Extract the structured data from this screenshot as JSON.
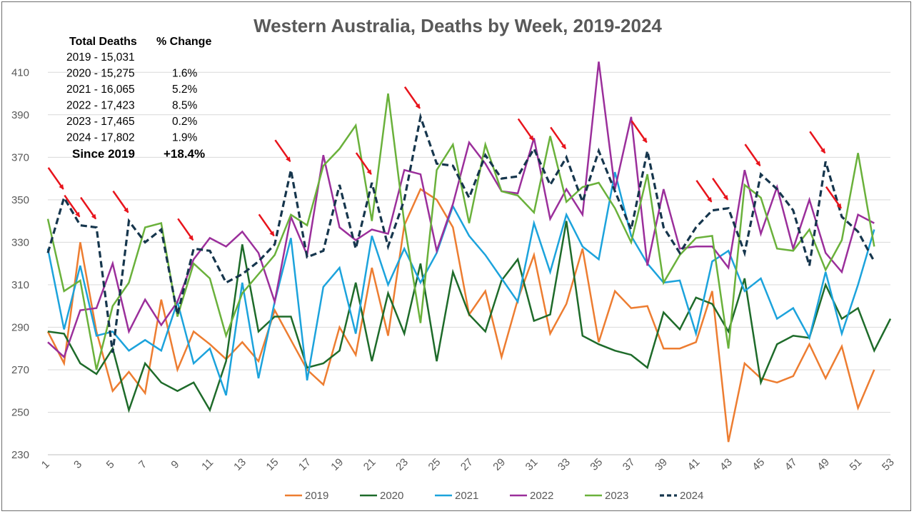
{
  "chart_data": {
    "type": "line",
    "title": "Western Australia, Deaths by Week, 2019-2024",
    "xlabel": "",
    "ylabel": "",
    "xlim": [
      1,
      53
    ],
    "ylim": [
      230,
      420
    ],
    "y_ticks": [
      230,
      250,
      270,
      290,
      310,
      330,
      350,
      370,
      390,
      410
    ],
    "x_ticks": [
      1,
      3,
      5,
      7,
      9,
      11,
      13,
      15,
      17,
      19,
      21,
      23,
      25,
      27,
      29,
      31,
      33,
      35,
      37,
      39,
      41,
      43,
      45,
      47,
      49,
      51,
      53
    ],
    "grid": "horizontal",
    "legend_position": "bottom",
    "series": [
      {
        "name": "2019",
        "color": "#ed7d31",
        "dash": false,
        "values": [
          288,
          273,
          330,
          288,
          260,
          269,
          259,
          303,
          270,
          288,
          282,
          275,
          283,
          274,
          298,
          284,
          270,
          263,
          290,
          277,
          318,
          286,
          338,
          355,
          350,
          337,
          296,
          307,
          276,
          303,
          324,
          287,
          301,
          327,
          283,
          307,
          299,
          300,
          280,
          280,
          283,
          307,
          236,
          273,
          266,
          264,
          267,
          282,
          266,
          281,
          252,
          270
        ]
      },
      {
        "name": "2020",
        "color": "#1e6b2a",
        "dash": false,
        "values": [
          288,
          287,
          273,
          268,
          280,
          251,
          273,
          264,
          260,
          264,
          251,
          274,
          329,
          288,
          295,
          295,
          271,
          273,
          279,
          311,
          274,
          306,
          287,
          320,
          274,
          316,
          296,
          288,
          312,
          322,
          293,
          296,
          340,
          286,
          282,
          279,
          277,
          271,
          297,
          289,
          304,
          301,
          288,
          313,
          264,
          282,
          286,
          285,
          310,
          294,
          299,
          279,
          294
        ]
      },
      {
        "name": "2021",
        "color": "#1ca3dc",
        "dash": false,
        "values": [
          327,
          289,
          319,
          286,
          288,
          279,
          284,
          279,
          302,
          273,
          280,
          258,
          311,
          266,
          302,
          332,
          265,
          309,
          318,
          287,
          333,
          310,
          327,
          311,
          325,
          347,
          333,
          324,
          313,
          302,
          339,
          316,
          343,
          328,
          322,
          363,
          333,
          320,
          311,
          312,
          287,
          321,
          326,
          307,
          313,
          294,
          299,
          285,
          316,
          287,
          310,
          336
        ]
      },
      {
        "name": "2022",
        "color": "#9b2f9b",
        "dash": false,
        "values": [
          283,
          276,
          298,
          299,
          320,
          288,
          303,
          291,
          302,
          322,
          332,
          328,
          335,
          325,
          302,
          342,
          324,
          371,
          337,
          331,
          336,
          334,
          364,
          362,
          326,
          348,
          377,
          367,
          354,
          353,
          379,
          341,
          355,
          343,
          415,
          355,
          389,
          319,
          355,
          327,
          328,
          328,
          318,
          364,
          334,
          356,
          327,
          350,
          325,
          316,
          343,
          339
        ]
      },
      {
        "name": "2023",
        "color": "#6ab13b",
        "dash": false,
        "values": [
          341,
          307,
          312,
          270,
          300,
          311,
          337,
          339,
          295,
          320,
          313,
          286,
          306,
          315,
          324,
          343,
          338,
          366,
          374,
          385,
          340,
          400,
          339,
          292,
          364,
          376,
          339,
          376,
          354,
          352,
          344,
          380,
          349,
          356,
          358,
          346,
          330,
          362,
          311,
          324,
          332,
          333,
          280,
          357,
          351,
          327,
          326,
          336,
          317,
          331,
          372,
          328
        ]
      },
      {
        "name": "2024",
        "color": "#16364d",
        "dash": true,
        "values": [
          325,
          351,
          338,
          337,
          278,
          340,
          330,
          336,
          296,
          327,
          326,
          311,
          315,
          321,
          329,
          364,
          323,
          326,
          357,
          327,
          358,
          328,
          350,
          389,
          367,
          366,
          351,
          371,
          360,
          361,
          374,
          357,
          370,
          349,
          373,
          354,
          336,
          373,
          337,
          325,
          337,
          345,
          346,
          325,
          362,
          355,
          345,
          319,
          368,
          342,
          335,
          321
        ]
      }
    ],
    "annotations": {
      "header_left": "Total Deaths",
      "header_right": "% Change",
      "rows": [
        {
          "label": "2019 - 15,031",
          "change": ""
        },
        {
          "label": "2020 - 15,275",
          "change": "1.6%"
        },
        {
          "label": "2021 - 16,065",
          "change": "5.2%"
        },
        {
          "label": "2022 - 17,423",
          "change": "8.5%"
        },
        {
          "label": "2023 - 17,465",
          "change": "0.2%"
        },
        {
          "label": "2024 - 17,802",
          "change": "1.9%"
        }
      ],
      "summary_label": "Since 2019",
      "summary_value": "+18.4%",
      "arrow_color": "#e8141c",
      "arrow_weeks": [
        2,
        3,
        4,
        6,
        10,
        15,
        16,
        21,
        24,
        31,
        33,
        38,
        42,
        43,
        45,
        49,
        50
      ]
    }
  }
}
